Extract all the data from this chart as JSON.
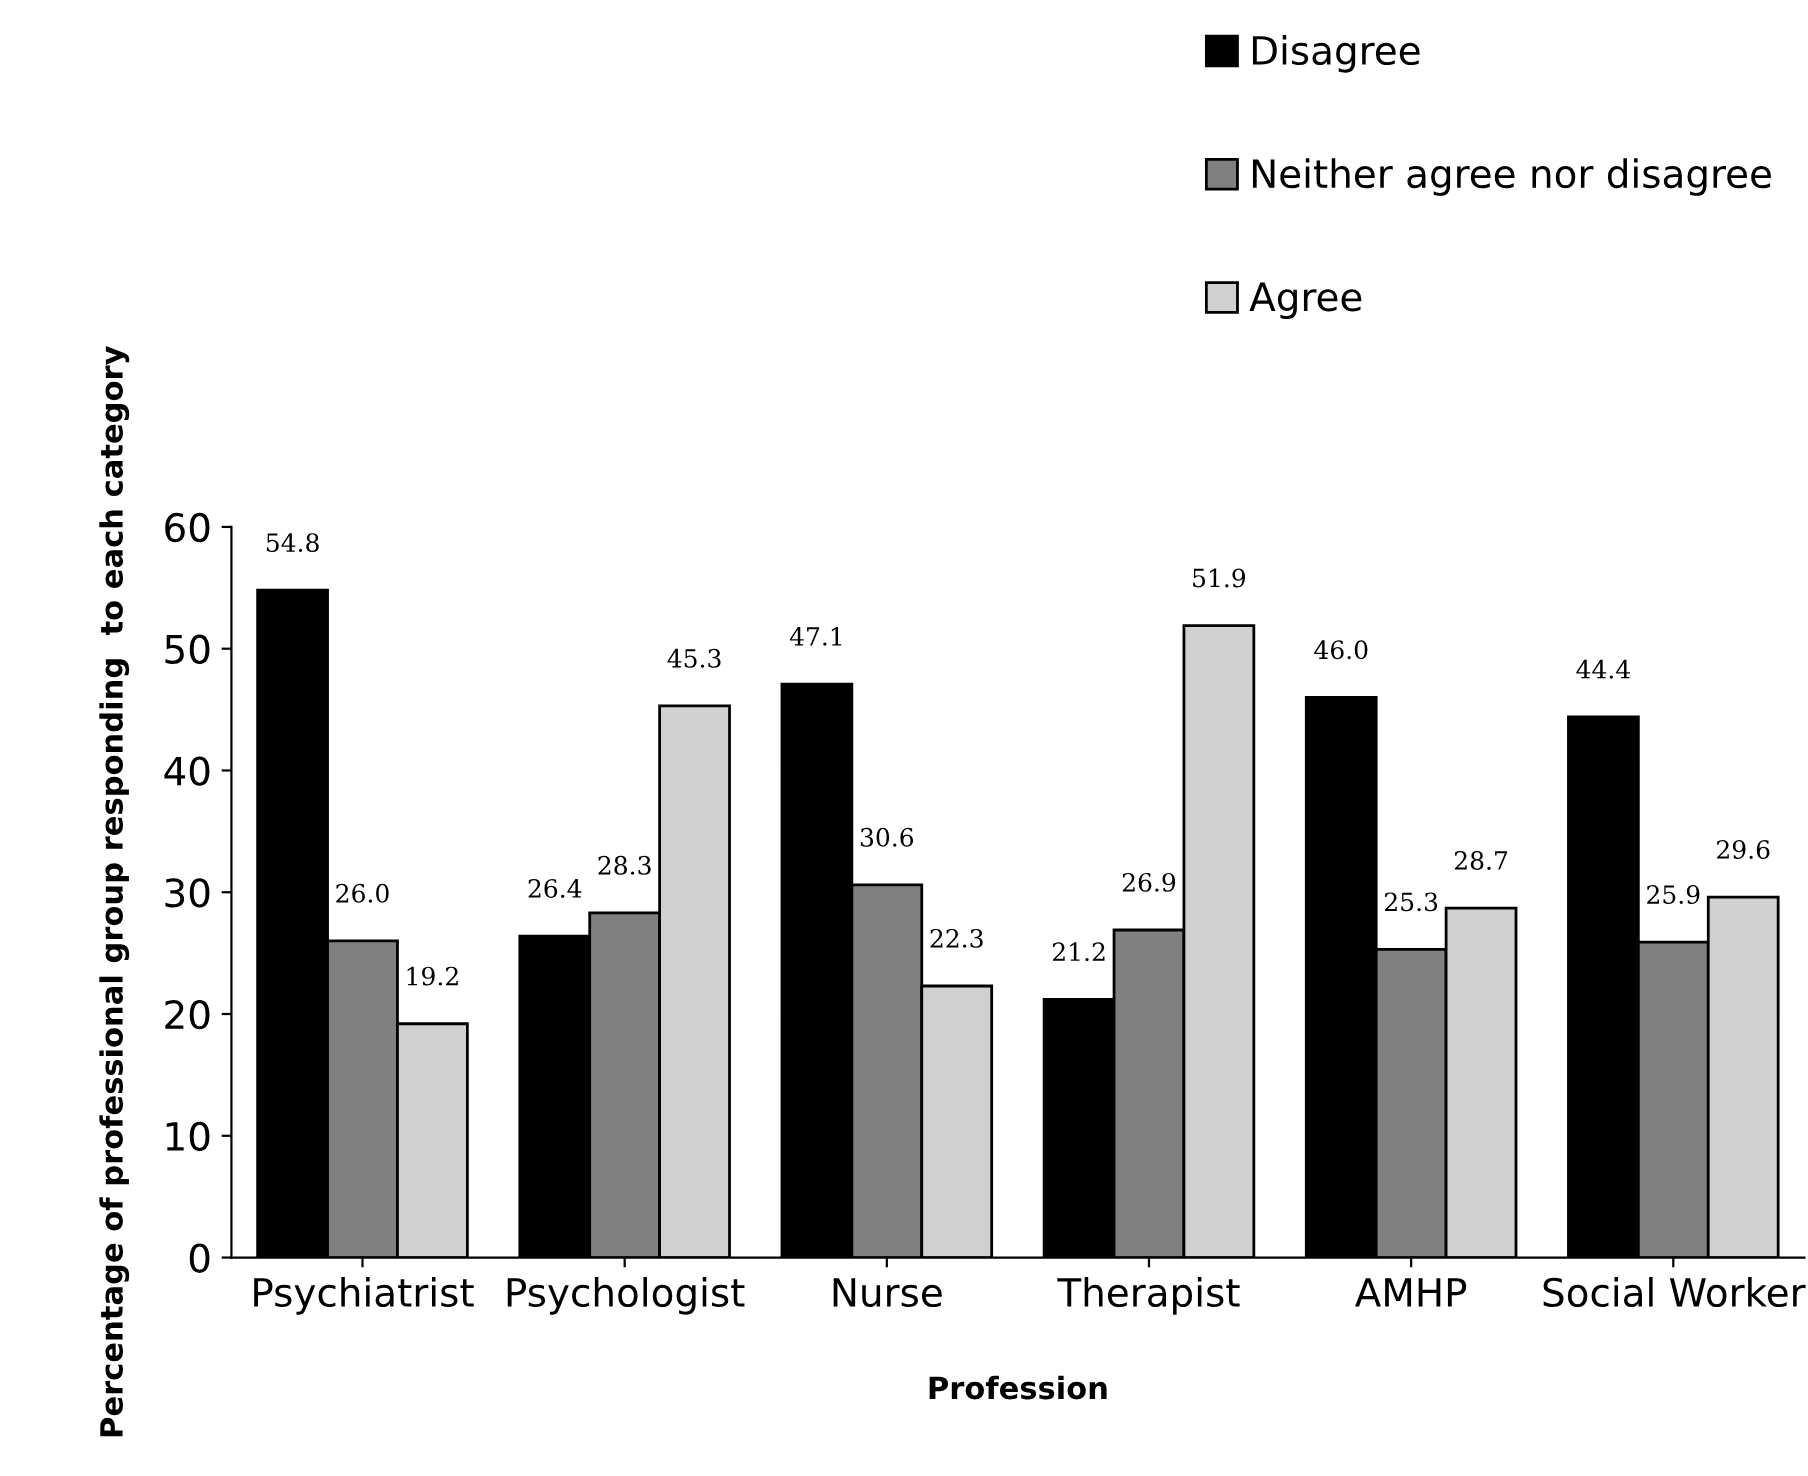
{
  "chart_data": {
    "type": "bar",
    "xlabel": "Profession",
    "ylabel": "Percentage of professional group responding  to each category",
    "categories": [
      "Psychiatrist",
      "Psychologist",
      "Nurse",
      "Therapist",
      "AMHP",
      "Social Worker"
    ],
    "series": [
      {
        "name": "Disagree",
        "color": "#000000",
        "values": [
          54.8,
          26.4,
          47.1,
          21.2,
          46.0,
          44.4
        ]
      },
      {
        "name": "Neither agree nor disagree",
        "color": "#808080",
        "values": [
          26.0,
          28.3,
          30.6,
          26.9,
          25.3,
          25.9
        ]
      },
      {
        "name": "Agree",
        "color": "#d0d0d0",
        "values": [
          19.2,
          45.3,
          22.3,
          51.9,
          28.7,
          29.6
        ]
      }
    ],
    "value_labels": [
      [
        "54.8",
        "26.4",
        "47.1",
        "21.2",
        "46.0",
        "44.4"
      ],
      [
        "26.0",
        "28.3",
        "30.6",
        "26.9",
        "25.3",
        "25.9"
      ],
      [
        "19.2",
        "45.3",
        "22.3",
        "51.9",
        "28.7",
        "29.6"
      ]
    ],
    "ylim": [
      0,
      60
    ],
    "yticks": [
      0,
      10,
      20,
      30,
      40,
      50,
      60
    ],
    "grid": false,
    "legend": "top right"
  }
}
